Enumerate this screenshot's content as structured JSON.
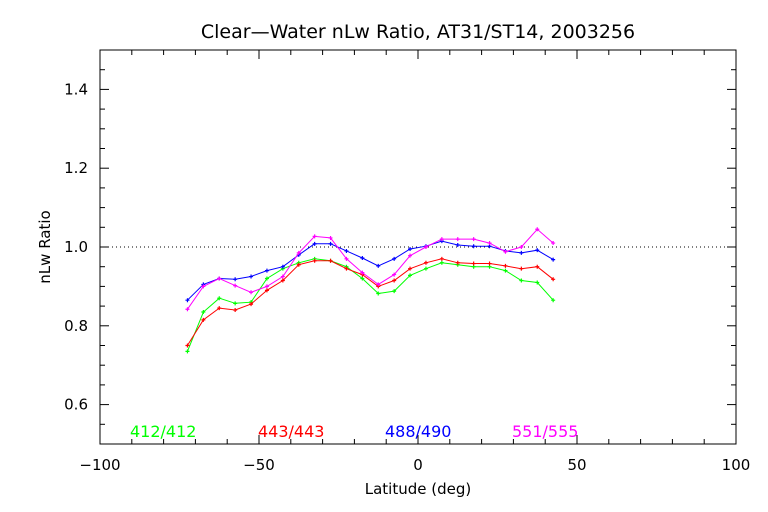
{
  "chart_data": {
    "type": "line",
    "title": "Clear—Water nLw Ratio, AT31/ST14, 2003256",
    "xlabel": "Latitude (deg)",
    "ylabel": "nLw Ratio",
    "xlim": [
      -100,
      100
    ],
    "ylim": [
      0.5,
      1.5
    ],
    "x_ticks": [
      -100,
      -50,
      0,
      50,
      100
    ],
    "y_ticks": [
      0.6,
      0.8,
      1.0,
      1.2,
      1.4
    ],
    "x_tick_labels": [
      "−100",
      "−50",
      "0",
      "50",
      "100"
    ],
    "y_tick_labels": [
      "0.6",
      "0.8",
      "1.0",
      "1.2",
      "1.4"
    ],
    "reference_line": 1.0,
    "grid": false,
    "legend_position": "bottom-inside",
    "x": [
      -72.5,
      -67.5,
      -62.5,
      -57.5,
      -52.5,
      -47.5,
      -42.5,
      -37.5,
      -32.5,
      -27.5,
      -22.5,
      -17.5,
      -12.5,
      -7.5,
      -2.5,
      2.5,
      7.5,
      12.5,
      17.5,
      22.5,
      27.5,
      32.5,
      37.5,
      42.5
    ],
    "series": [
      {
        "name": "412/412",
        "color": "#00ff00",
        "values": [
          0.735,
          0.835,
          0.87,
          0.857,
          0.86,
          0.92,
          0.945,
          0.96,
          0.97,
          0.965,
          0.95,
          0.92,
          0.882,
          0.888,
          0.928,
          0.945,
          0.96,
          0.955,
          0.95,
          0.95,
          0.94,
          0.915,
          0.91,
          0.865
        ]
      },
      {
        "name": "443/443",
        "color": "#ff0000",
        "values": [
          0.75,
          0.815,
          0.845,
          0.84,
          0.855,
          0.89,
          0.915,
          0.955,
          0.965,
          0.965,
          0.945,
          0.93,
          0.9,
          0.915,
          0.945,
          0.96,
          0.97,
          0.96,
          0.958,
          0.958,
          0.952,
          0.945,
          0.95,
          0.918
        ]
      },
      {
        "name": "488/490",
        "color": "#0000ff",
        "values": [
          0.865,
          0.905,
          0.92,
          0.918,
          0.925,
          0.94,
          0.95,
          0.98,
          1.008,
          1.008,
          0.99,
          0.972,
          0.952,
          0.97,
          0.995,
          1.002,
          1.015,
          1.005,
          1.002,
          1.002,
          0.99,
          0.985,
          0.992,
          0.968
        ]
      },
      {
        "name": "551/555",
        "color": "#ff00ff",
        "values": [
          0.842,
          0.9,
          0.92,
          0.902,
          0.885,
          0.9,
          0.925,
          0.985,
          1.027,
          1.023,
          0.97,
          0.935,
          0.905,
          0.93,
          0.978,
          1.0,
          1.02,
          1.02,
          1.02,
          1.01,
          0.988,
          1.0,
          1.045,
          1.01
        ]
      }
    ]
  }
}
